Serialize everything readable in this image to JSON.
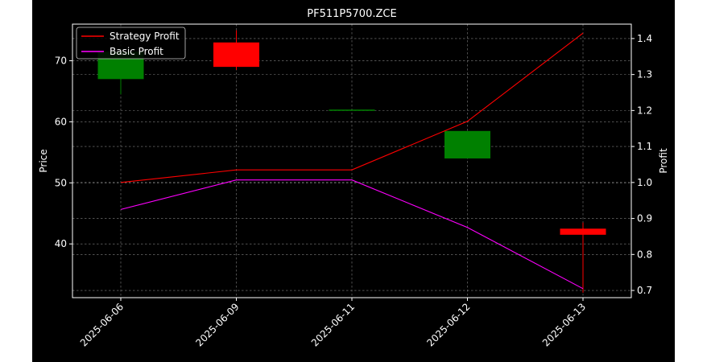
{
  "chart_data": {
    "type": "candlestick+line",
    "title": "PF511P5700.ZCE",
    "x_labels": [
      "2025-06-06",
      "2025-06-09",
      "2025-06-11",
      "2025-06-12",
      "2025-06-13"
    ],
    "left_axis": {
      "label": "Price",
      "ylim": [
        31.2,
        76.0
      ],
      "ticks": [
        40,
        50,
        60,
        70
      ]
    },
    "right_axis": {
      "label": "Profit",
      "ylim": [
        0.68,
        1.44
      ],
      "ticks": [
        0.7,
        0.8,
        0.9,
        1.0,
        1.1,
        1.2,
        1.3,
        1.4
      ]
    },
    "candles": [
      {
        "date": "2025-06-06",
        "open": 67.0,
        "high": 72.0,
        "low": 64.5,
        "close": 71.5
      },
      {
        "date": "2025-06-09",
        "open": 73.0,
        "high": 75.0,
        "low": 68.5,
        "close": 69.0
      },
      {
        "date": "2025-06-11",
        "open": 62.0,
        "high": 62.0,
        "low": 62.0,
        "close": 62.0
      },
      {
        "date": "2025-06-12",
        "open": 54.0,
        "high": 58.5,
        "low": 54.0,
        "close": 58.5
      },
      {
        "date": "2025-06-13",
        "open": 42.5,
        "high": 43.5,
        "low": 32.0,
        "close": 41.5
      }
    ],
    "series": [
      {
        "name": "Strategy Profit",
        "color": "#ff0000",
        "values": [
          1.0,
          1.035,
          1.035,
          1.17,
          1.415
        ]
      },
      {
        "name": "Basic Profit",
        "color": "#ff00ff",
        "values": [
          0.925,
          1.007,
          1.007,
          0.875,
          0.705
        ]
      }
    ],
    "colors": {
      "up": "#008000",
      "down": "#ff0000",
      "background": "#000000",
      "text": "#ffffff"
    },
    "grid": true,
    "legend_position": "top-left"
  }
}
